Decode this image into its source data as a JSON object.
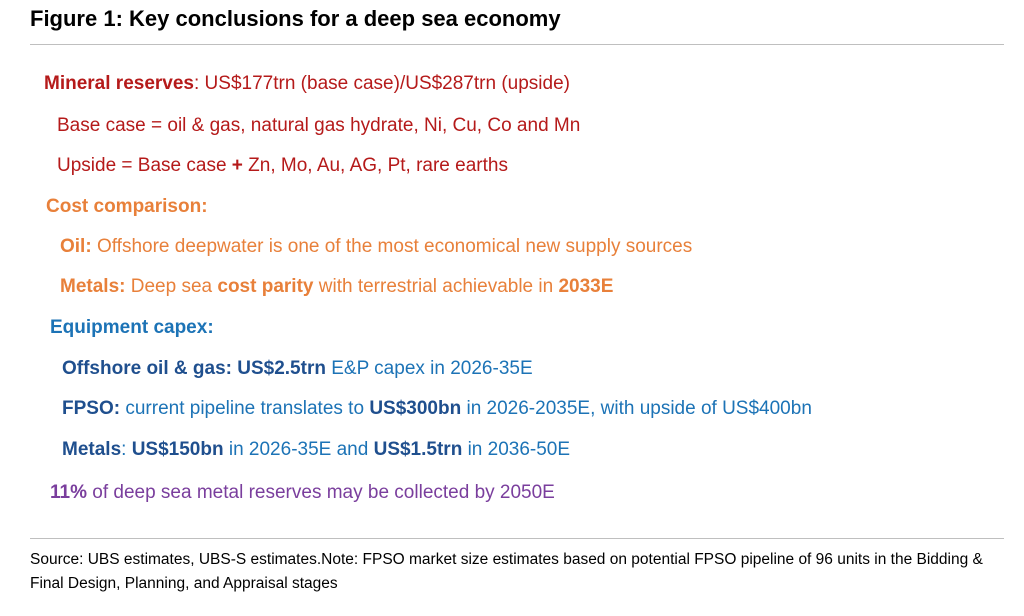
{
  "title": "Figure 1: Key conclusions for a deep sea economy",
  "colors": {
    "red": "#b51a1a",
    "orange": "#e8803a",
    "blue": "#1c73b6",
    "navy": "#1f4f8e",
    "purple": "#7a3e9d"
  },
  "mineral": {
    "label": "Mineral reserves",
    "text": ": US$177trn (base case)/US$287trn (upside)",
    "base_case": "Base case = oil & gas, natural gas hydrate, Ni, Cu, Co and Mn",
    "upside_pre": "Upside = Base case ",
    "upside_plus": "+",
    "upside_post": " Zn, Mo, Au, AG, Pt, rare earths"
  },
  "cost": {
    "heading": "Cost comparison:",
    "oil_label": "Oil:",
    "oil_text": " Offshore deepwater is one of the most economical new supply sources",
    "metals_label": "Metals:",
    "metals_pre": " Deep sea ",
    "metals_bold": "cost parity",
    "metals_mid": " with terrestrial achievable in ",
    "metals_year": "2033E"
  },
  "capex": {
    "heading": "Equipment capex:",
    "og_label": "Offshore oil & gas: ",
    "og_value": "US$2.5trn",
    "og_text": " E&P capex in 2026-35E",
    "fpso_label": "FPSO:",
    "fpso_pre": " current pipeline translates to ",
    "fpso_value": "US$300bn",
    "fpso_post": " in 2026-2035E, with upside of US$400bn",
    "metals_label": "Metals",
    "metals_colon": ": ",
    "metals_value1": "US$150bn",
    "metals_mid": " in 2026-35E and ",
    "metals_value2": "US$1.5trn",
    "metals_post": " in 2036-50E"
  },
  "collect": {
    "pct": "11%",
    "text": " of deep sea metal reserves  may be collected by 2050E"
  },
  "source": "Source: UBS estimates, UBS-S estimates.Note: FPSO market size estimates based on potential FPSO pipeline of 96 units in the Bidding & Final Design, Planning, and Appraisal stages"
}
